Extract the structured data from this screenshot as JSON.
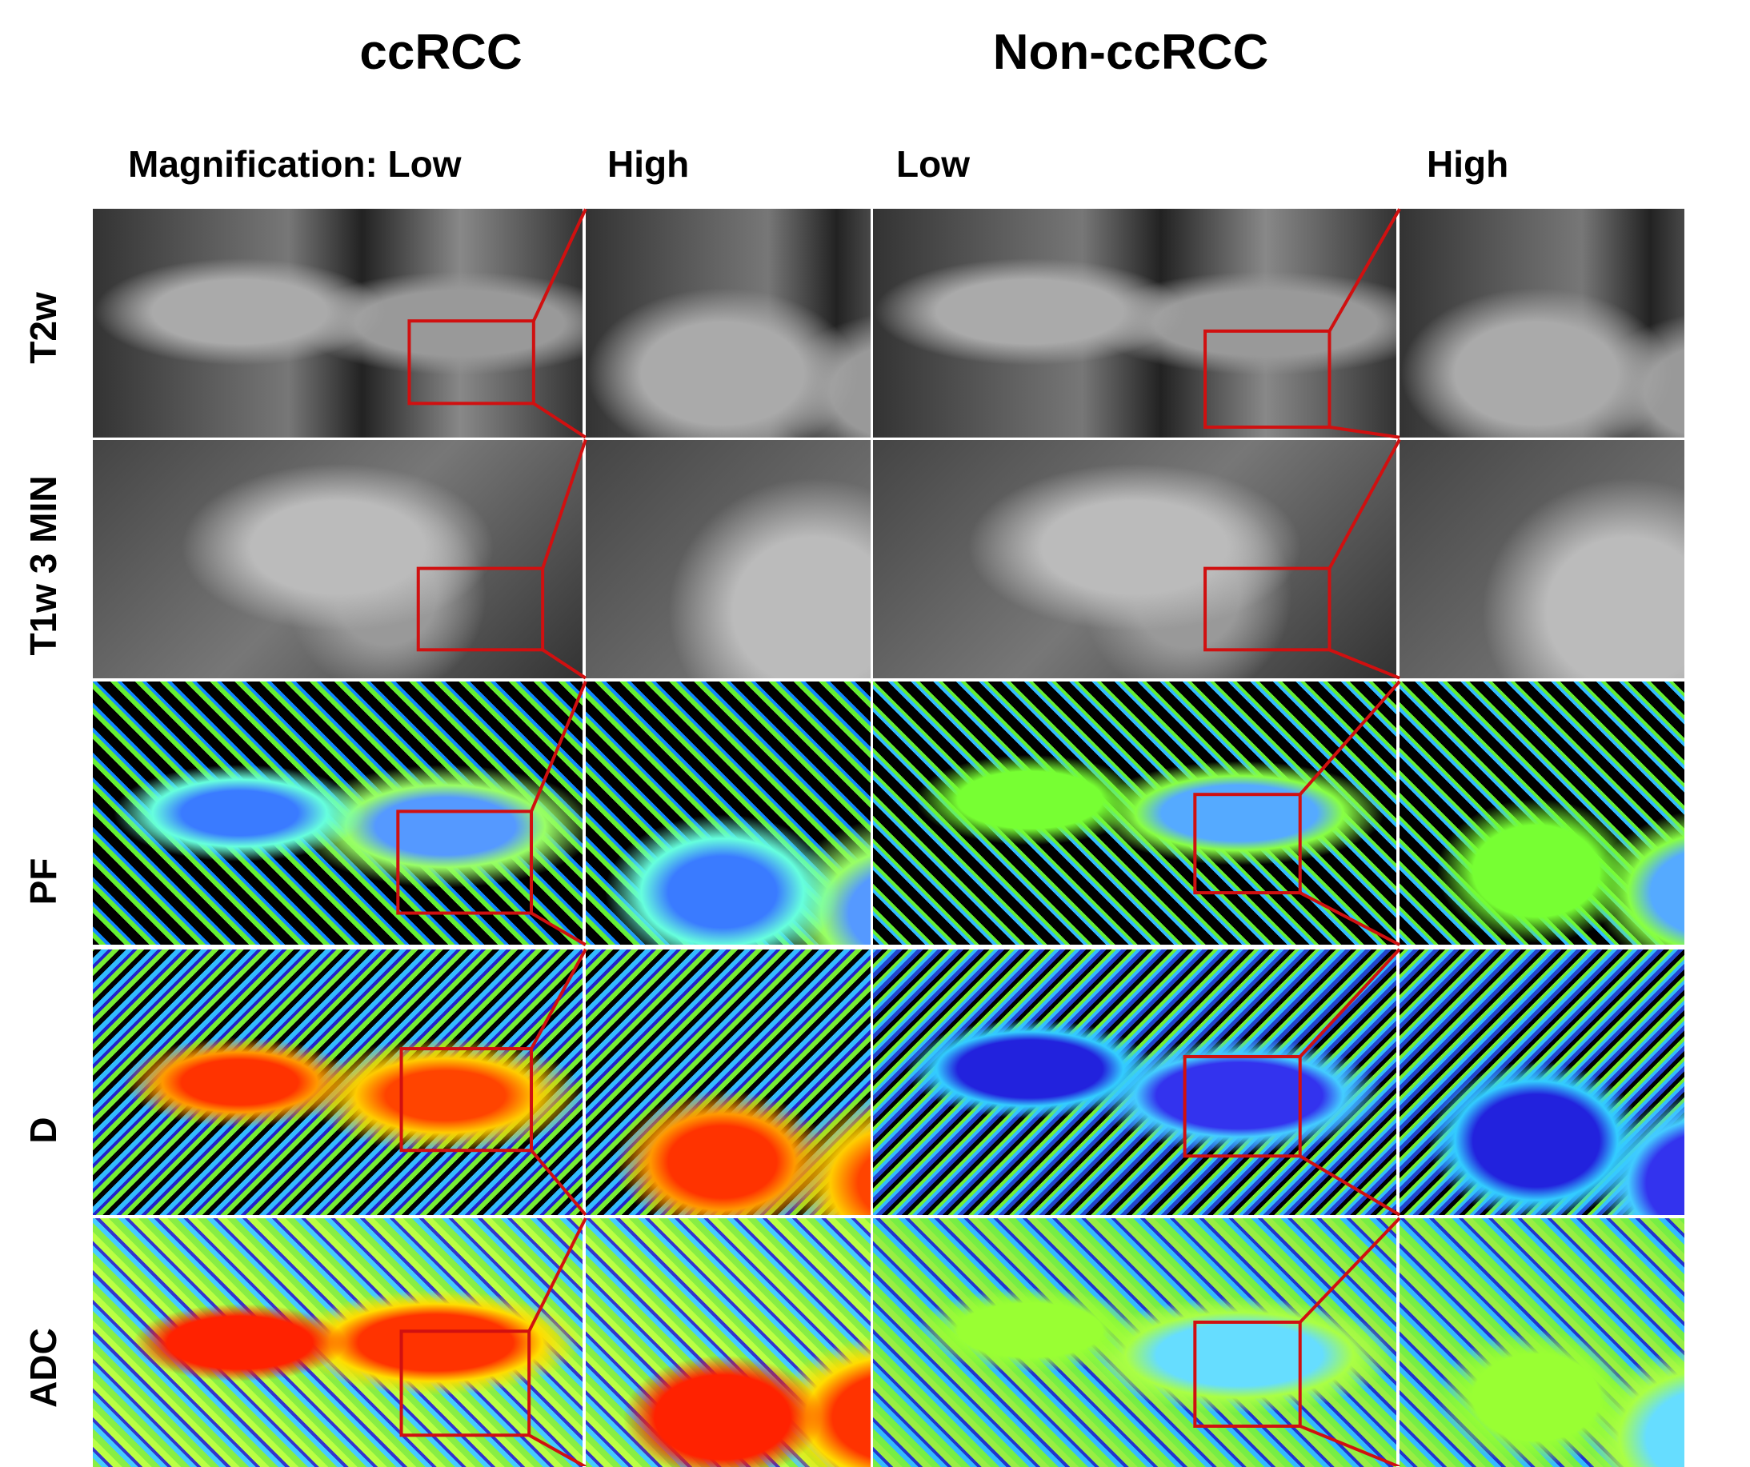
{
  "figure": {
    "group_titles": [
      "ccRCC",
      "Non-ccRCC"
    ],
    "column_labels": [
      "Magnification: Low",
      "High",
      "Low",
      "High"
    ],
    "row_labels": [
      "T2w",
      "T1w 3 MIN",
      "PF",
      "D",
      "ADC"
    ]
  }
}
